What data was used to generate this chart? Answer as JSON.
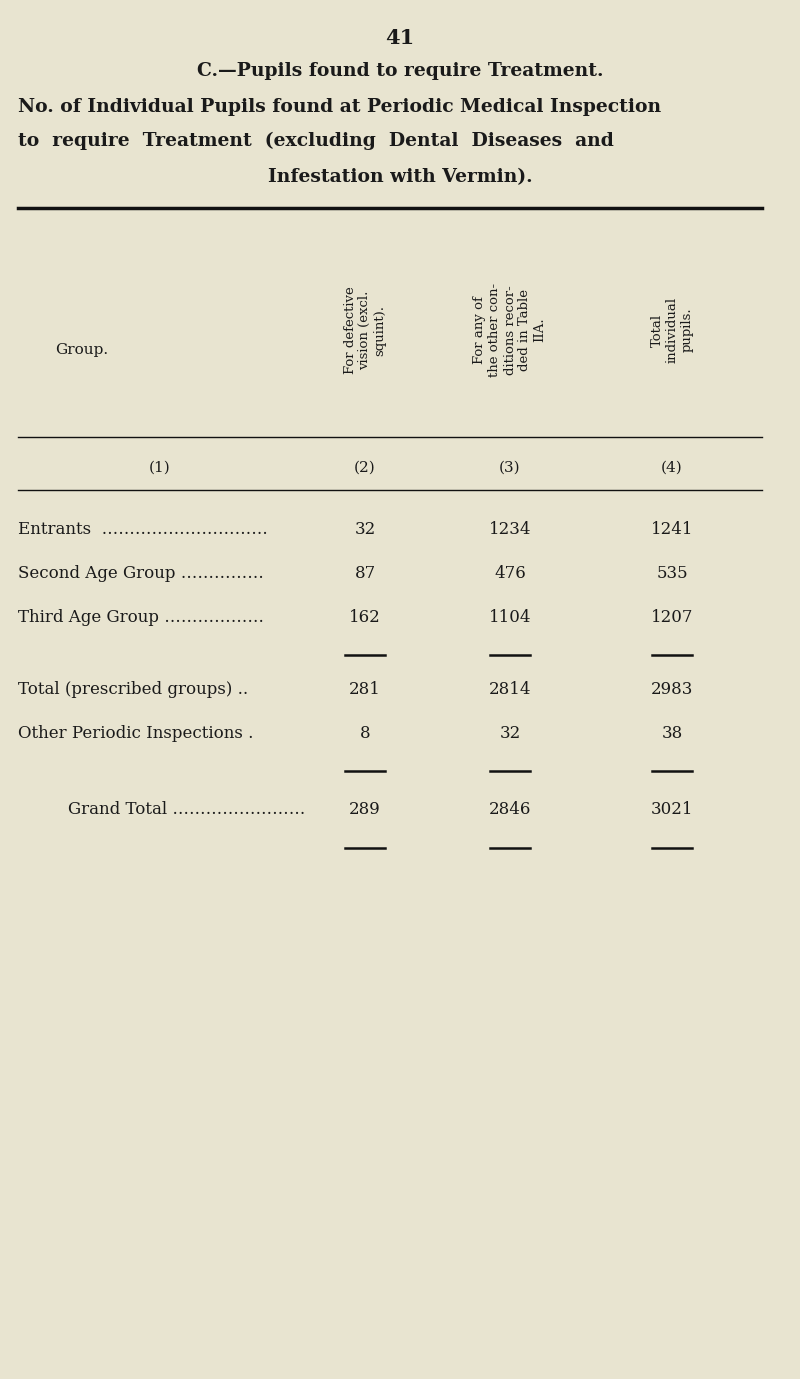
{
  "page_number": "41",
  "title_line1": "C.—Pupils found to require Treatment.",
  "title_line2": "No. of Individual Pupils found at Periodic Medical Inspection",
  "title_line3": "to  require  Treatment  (excluding  Dental  Diseases  and",
  "title_line4": "Infestation with Vermin).",
  "bg_color": "#e8e4d0",
  "text_color": "#1a1a1a",
  "line_color": "#111111",
  "col2_header": "For defective\nvision (excl.\nsquint).",
  "col3_header": "For any of\nthe other con-\nditions recor-\nded in Table\nIIA.",
  "col4_header": "Total\nindividual\npupils.",
  "rows": [
    {
      "label": "Entrants  …………………………",
      "c2": "32",
      "c3": "1234",
      "c4": "1241",
      "indent": false
    },
    {
      "label": "Second Age Group ……………",
      "c2": "87",
      "c3": "476",
      "c4": "535",
      "indent": false
    },
    {
      "label": "Third Age Group ………………",
      "c2": "162",
      "c3": "1104",
      "c4": "1207",
      "indent": false
    },
    {
      "label": "Total (prescribed groups) ..",
      "c2": "281",
      "c3": "2814",
      "c4": "2983",
      "indent": false
    },
    {
      "label": "Other Periodic Inspections .",
      "c2": "8",
      "c3": "32",
      "c4": "38",
      "indent": false
    },
    {
      "label": "Grand Total ……………………",
      "c2": "289",
      "c3": "2846",
      "c4": "3021",
      "indent": true
    }
  ]
}
